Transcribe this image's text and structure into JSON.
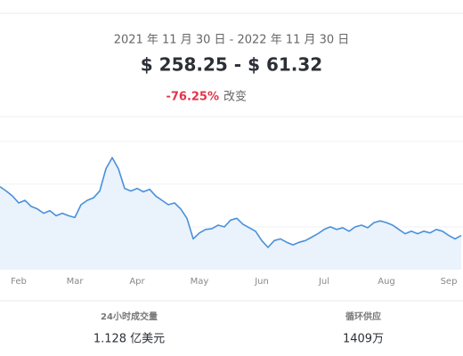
{
  "header": {
    "date_range": "2021 年 11 月 30 日 - 2022 年 11 月 30 日",
    "price_range": "$ 258.25 - $ 61.32",
    "change": "-76.25%",
    "change_label": "改变"
  },
  "chart_data": {
    "type": "line",
    "color": "#4a90d9",
    "fill_color": "#eaf2fc",
    "grid": true,
    "ylim": [
      0,
      180
    ],
    "yticks": [
      50,
      100,
      150
    ],
    "categories": [
      null,
      null,
      null,
      "Feb",
      null,
      null,
      null,
      null,
      null,
      null,
      null,
      null,
      "Mar",
      null,
      null,
      null,
      null,
      null,
      null,
      null,
      null,
      null,
      "Apr",
      null,
      null,
      null,
      null,
      null,
      null,
      null,
      null,
      null,
      "May",
      null,
      null,
      null,
      null,
      null,
      null,
      null,
      null,
      null,
      "Jun",
      null,
      null,
      null,
      null,
      null,
      null,
      null,
      null,
      null,
      "Jul",
      null,
      null,
      null,
      null,
      null,
      null,
      null,
      null,
      null,
      "Aug",
      null,
      null,
      null,
      null,
      null,
      null,
      null,
      null,
      null,
      "Sep",
      null,
      null
    ],
    "values": [
      97,
      92,
      86,
      78,
      81,
      74,
      71,
      66,
      69,
      63,
      66,
      63,
      61,
      76,
      81,
      84,
      92,
      118,
      131,
      118,
      95,
      92,
      95,
      91,
      94,
      86,
      81,
      76,
      78,
      71,
      60,
      36,
      43,
      47,
      48,
      52,
      50,
      58,
      60,
      53,
      49,
      45,
      34,
      26,
      34,
      36,
      32,
      29,
      32,
      34,
      38,
      42,
      47,
      50,
      47,
      49,
      45,
      50,
      52,
      49,
      55,
      57,
      55,
      52,
      47,
      42,
      45,
      42,
      45,
      43,
      47,
      45,
      40,
      36,
      40
    ]
  },
  "stats": [
    {
      "label": "24小时成交量",
      "value": "1.128 亿美元"
    },
    {
      "label": "循环供应",
      "value": "1409万"
    }
  ]
}
